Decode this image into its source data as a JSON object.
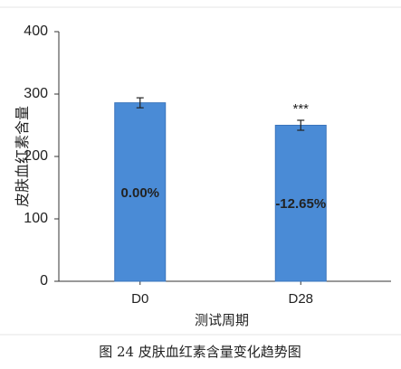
{
  "chart_data": {
    "type": "bar",
    "y_label": "皮肤血红素含量",
    "x_label": "测试周期",
    "caption": "图 24   皮肤血红素含量变化趋势图",
    "categories": [
      "D0",
      "D28"
    ],
    "values": [
      286,
      250
    ],
    "errors": [
      8,
      8
    ],
    "bar_labels": [
      "0.00%",
      "-12.65%"
    ],
    "significance": [
      null,
      "***"
    ],
    "color": "#4a8bd6",
    "ylim": [
      0,
      400
    ],
    "yticks": [
      0,
      100,
      200,
      300,
      400
    ],
    "grid": false
  }
}
